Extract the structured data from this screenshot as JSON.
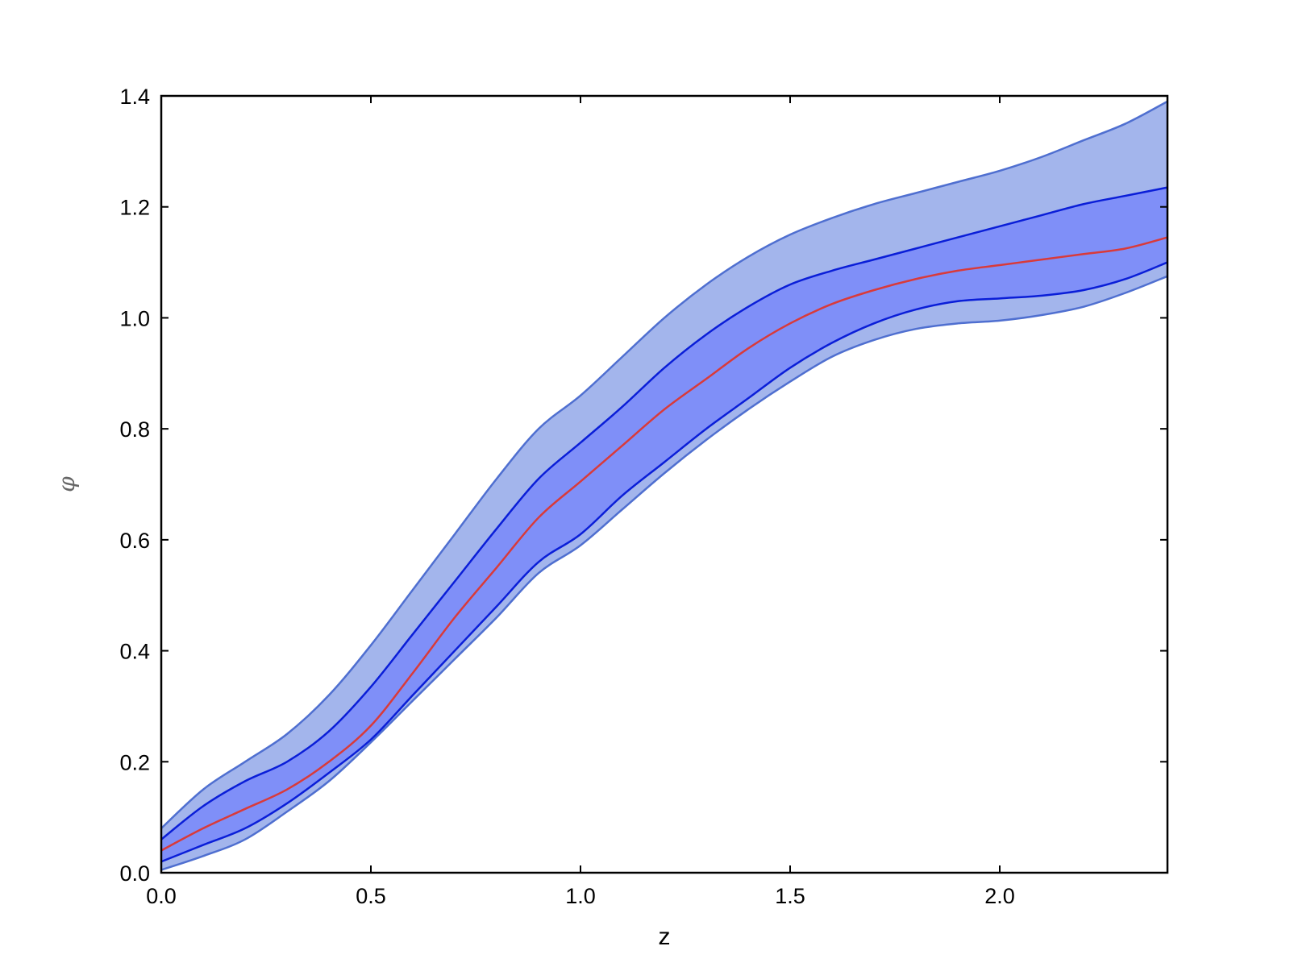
{
  "chart_data": {
    "type": "area",
    "title": "",
    "xlabel": "z",
    "ylabel": "φ",
    "xlim": [
      0.0,
      2.4
    ],
    "ylim": [
      0.0,
      1.4
    ],
    "xticks": [
      "0.0",
      "0.5",
      "1.0",
      "1.5",
      "2.0"
    ],
    "yticks": [
      "0.0",
      "0.2",
      "0.4",
      "0.6",
      "0.8",
      "1.0",
      "1.2",
      "1.4"
    ],
    "grid": false,
    "legend": "none",
    "colors": {
      "outer_band": "#a3b5ec",
      "inner_band": "#7f8ff8",
      "band_edge_outer": "#4f6fd0",
      "band_edge_inner": "#0a1ed8",
      "median_line": "#d93a3a"
    },
    "x": [
      0.0,
      0.1,
      0.2,
      0.3,
      0.4,
      0.5,
      0.6,
      0.7,
      0.8,
      0.9,
      1.0,
      1.1,
      1.2,
      1.3,
      1.4,
      1.5,
      1.6,
      1.7,
      1.8,
      1.9,
      2.0,
      2.1,
      2.2,
      2.3,
      2.4
    ],
    "series": [
      {
        "role": "outer-upper",
        "values": [
          0.08,
          0.15,
          0.2,
          0.25,
          0.32,
          0.41,
          0.51,
          0.61,
          0.71,
          0.8,
          0.86,
          0.93,
          1.0,
          1.06,
          1.11,
          1.15,
          1.18,
          1.205,
          1.225,
          1.245,
          1.265,
          1.29,
          1.32,
          1.35,
          1.39
        ]
      },
      {
        "role": "inner-upper",
        "values": [
          0.06,
          0.12,
          0.165,
          0.2,
          0.255,
          0.335,
          0.43,
          0.525,
          0.62,
          0.71,
          0.775,
          0.84,
          0.91,
          0.97,
          1.02,
          1.06,
          1.085,
          1.105,
          1.125,
          1.145,
          1.165,
          1.185,
          1.205,
          1.22,
          1.235
        ]
      },
      {
        "role": "median",
        "values": [
          0.04,
          0.08,
          0.115,
          0.15,
          0.2,
          0.265,
          0.36,
          0.46,
          0.55,
          0.64,
          0.705,
          0.77,
          0.835,
          0.89,
          0.945,
          0.99,
          1.025,
          1.05,
          1.07,
          1.085,
          1.095,
          1.105,
          1.115,
          1.125,
          1.145
        ]
      },
      {
        "role": "inner-lower",
        "values": [
          0.02,
          0.05,
          0.08,
          0.125,
          0.18,
          0.24,
          0.32,
          0.4,
          0.48,
          0.56,
          0.61,
          0.68,
          0.74,
          0.8,
          0.855,
          0.91,
          0.955,
          0.99,
          1.015,
          1.03,
          1.035,
          1.04,
          1.05,
          1.07,
          1.1
        ]
      },
      {
        "role": "outer-lower",
        "values": [
          0.005,
          0.03,
          0.06,
          0.11,
          0.165,
          0.235,
          0.31,
          0.385,
          0.46,
          0.54,
          0.59,
          0.655,
          0.72,
          0.78,
          0.835,
          0.885,
          0.93,
          0.96,
          0.98,
          0.99,
          0.995,
          1.005,
          1.02,
          1.045,
          1.075
        ]
      }
    ]
  }
}
